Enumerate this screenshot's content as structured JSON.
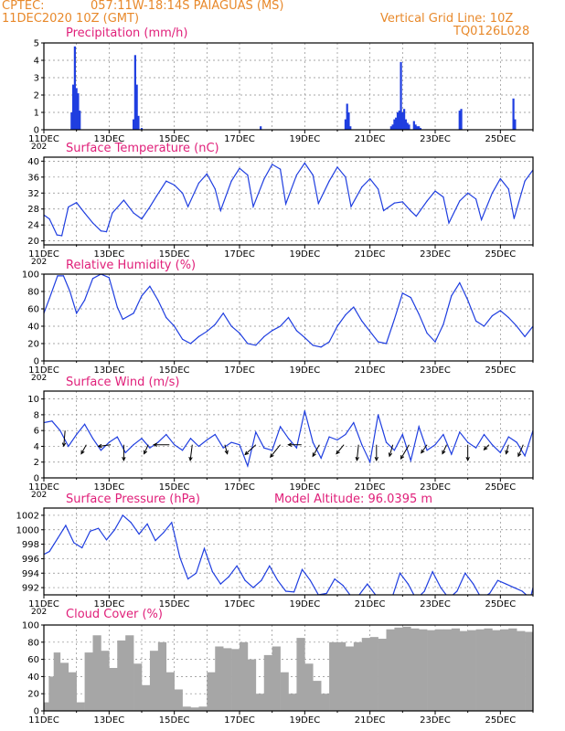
{
  "header": {
    "source": "CPTEC:",
    "location": "057:11W-18:14S  PAIAGUAS (MS)",
    "run": "11DEC2020 10Z (GMT)",
    "grid_line": "Vertical Grid Line: 10Z",
    "code": "TQ0126L028",
    "model_altitude": "Model Altitude: 96.0395 m"
  },
  "colors": {
    "header": "#e8892b",
    "title": "#e0207a",
    "line": "#1f3ee0",
    "bar": "#1f3ee0",
    "cloud": "#a6a6a6",
    "grid": "#8a8a8a",
    "arrow": "#000000"
  },
  "chart_data": [
    {
      "type": "bar",
      "title": "Precipitation (mm/h)",
      "ylim": [
        0,
        5
      ],
      "yticks": [
        "0",
        "1",
        "2",
        "3",
        "4",
        "5"
      ],
      "xticks": [
        "11DEC",
        "13DEC",
        "15DEC",
        "17DEC",
        "19DEC",
        "21DEC",
        "23DEC",
        "25DEC"
      ],
      "clipped_label": "202",
      "x": [
        0.85,
        0.9,
        0.95,
        1.0,
        1.05,
        1.1,
        2.75,
        2.8,
        2.85,
        2.9,
        3.0,
        6.65,
        9.25,
        9.3,
        9.35,
        9.4,
        10.65,
        10.7,
        10.75,
        10.8,
        10.85,
        10.9,
        10.95,
        11.0,
        11.05,
        11.1,
        11.15,
        11.2,
        11.35,
        11.4,
        11.45,
        11.5,
        11.55,
        12.75,
        12.8,
        14.4,
        14.45
      ],
      "values": [
        1.0,
        2.6,
        4.8,
        2.4,
        2.1,
        1.1,
        0.6,
        4.3,
        2.6,
        0.8,
        0.1,
        0.2,
        0.6,
        1.5,
        1.0,
        0.2,
        0.2,
        0.3,
        0.6,
        0.7,
        1.0,
        1.1,
        3.9,
        1.0,
        1.2,
        0.6,
        0.4,
        0.3,
        0.5,
        0.3,
        0.2,
        0.2,
        0.1,
        1.1,
        1.2,
        1.8,
        0.6
      ]
    },
    {
      "type": "line",
      "title": "Surface Temperature (nC)",
      "ylim": [
        19,
        41
      ],
      "yticks": [
        "20",
        "24",
        "28",
        "32",
        "36",
        "40"
      ],
      "xticks": [
        "11DEC",
        "13DEC",
        "15DEC",
        "17DEC",
        "19DEC",
        "21DEC",
        "23DEC",
        "25DEC"
      ],
      "clipped_label": "202",
      "x": [
        0,
        0.17,
        0.4,
        0.55,
        0.75,
        1.0,
        1.25,
        1.5,
        1.75,
        1.92,
        2.1,
        2.45,
        2.75,
        3.0,
        3.25,
        3.45,
        3.75,
        4.0,
        4.25,
        4.42,
        4.75,
        5.0,
        5.25,
        5.42,
        5.75,
        6.0,
        6.25,
        6.42,
        6.75,
        7.0,
        7.25,
        7.42,
        7.75,
        8.0,
        8.25,
        8.42,
        8.75,
        9.0,
        9.25,
        9.42,
        9.75,
        10.0,
        10.25,
        10.42,
        10.75,
        11.0,
        11.25,
        11.42,
        11.75,
        12.0,
        12.25,
        12.42,
        12.75,
        13.0,
        13.25,
        13.42,
        13.75,
        14.0,
        14.25,
        14.42,
        14.75,
        15.0
      ],
      "values": [
        26.5,
        25.5,
        21.5,
        21.3,
        28.5,
        29.6,
        27,
        24.5,
        22.5,
        22.3,
        27,
        30.2,
        27,
        25.5,
        28.5,
        31.2,
        35,
        34,
        32,
        28.6,
        34.5,
        36.8,
        33,
        27.6,
        35,
        38.2,
        36.5,
        28.6,
        35.5,
        39.2,
        38,
        29.3,
        36.5,
        39.5,
        36.5,
        29.4,
        35,
        38.5,
        36,
        28.6,
        33.5,
        35.6,
        33,
        27.6,
        29.5,
        29.8,
        27.5,
        26.2,
        30,
        32.5,
        31,
        24.5,
        30,
        32,
        30.5,
        25.3,
        32,
        35.6,
        33,
        25.6,
        35,
        37.8
      ]
    },
    {
      "type": "line",
      "title": "Relative Humidity (%)",
      "ylim": [
        0,
        100
      ],
      "yticks": [
        "0",
        "20",
        "40",
        "60",
        "80",
        "100"
      ],
      "xticks": [
        "11DEC",
        "13DEC",
        "15DEC",
        "17DEC",
        "19DEC",
        "21DEC",
        "23DEC",
        "25DEC"
      ],
      "clipped_label": "202",
      "x": [
        0,
        0.17,
        0.42,
        0.6,
        0.8,
        1.0,
        1.25,
        1.5,
        1.75,
        2.0,
        2.25,
        2.42,
        2.75,
        3.0,
        3.25,
        3.5,
        3.75,
        4.0,
        4.25,
        4.5,
        4.75,
        5.0,
        5.25,
        5.5,
        5.75,
        6.0,
        6.25,
        6.5,
        6.75,
        7.0,
        7.25,
        7.5,
        7.75,
        8.0,
        8.25,
        8.5,
        8.75,
        9.0,
        9.25,
        9.5,
        9.75,
        10.0,
        10.25,
        10.5,
        10.75,
        11.0,
        11.25,
        11.5,
        11.75,
        12.0,
        12.25,
        12.5,
        12.75,
        13.0,
        13.25,
        13.5,
        13.75,
        14.0,
        14.25,
        14.5,
        14.75,
        15.0
      ],
      "values": [
        55,
        72,
        98,
        98,
        80,
        55,
        70,
        95,
        100,
        96,
        62,
        48,
        55,
        75,
        86,
        70,
        50,
        40,
        25,
        20,
        28,
        34,
        42,
        55,
        40,
        32,
        20,
        18,
        28,
        35,
        40,
        50,
        35,
        27,
        18,
        16,
        22,
        40,
        53,
        62,
        46,
        34,
        22,
        20,
        48,
        78,
        73,
        54,
        32,
        22,
        42,
        75,
        90,
        70,
        46,
        40,
        52,
        58,
        50,
        40,
        28,
        40
      ]
    },
    {
      "type": "line",
      "title": "Surface Wind (m/s)",
      "ylim": [
        0,
        11
      ],
      "yticks": [
        "0",
        "2",
        "4",
        "6",
        "8",
        "10"
      ],
      "xticks": [
        "11DEC",
        "13DEC",
        "15DEC",
        "17DEC",
        "19DEC",
        "21DEC",
        "23DEC",
        "25DEC"
      ],
      "clipped_label": "202",
      "x": [
        0,
        0.25,
        0.5,
        0.75,
        1.0,
        1.25,
        1.5,
        1.75,
        2.0,
        2.25,
        2.5,
        2.75,
        3.0,
        3.25,
        3.5,
        3.75,
        4.0,
        4.25,
        4.5,
        4.75,
        5.0,
        5.25,
        5.5,
        5.75,
        6.0,
        6.25,
        6.5,
        6.75,
        7.0,
        7.25,
        7.5,
        7.75,
        8.0,
        8.25,
        8.5,
        8.75,
        9.0,
        9.25,
        9.5,
        9.75,
        10.0,
        10.25,
        10.5,
        10.75,
        11.0,
        11.25,
        11.5,
        11.75,
        12.0,
        12.25,
        12.5,
        12.75,
        13.0,
        13.25,
        13.5,
        13.75,
        14.0,
        14.25,
        14.5,
        14.75,
        15.0
      ],
      "values": [
        7.0,
        7.2,
        6.0,
        4.0,
        5.5,
        6.8,
        5.0,
        3.5,
        4.5,
        5.2,
        3.2,
        4.2,
        5.0,
        3.8,
        4.5,
        5.5,
        4.2,
        3.5,
        5.0,
        4.0,
        4.8,
        5.5,
        3.8,
        4.5,
        4.2,
        1.5,
        5.8,
        3.8,
        3.5,
        6.5,
        5.0,
        3.8,
        8.5,
        4.5,
        2.5,
        5.2,
        4.8,
        5.5,
        7.0,
        4.2,
        2.0,
        8.0,
        4.5,
        3.5,
        5.5,
        2.2,
        6.5,
        3.5,
        4.2,
        5.5,
        3.0,
        5.8,
        4.5,
        3.8,
        5.5,
        4.2,
        3.2,
        5.2,
        4.5,
        2.8,
        6.0
      ],
      "arrows": [
        [
          0.65,
          6.0,
          -0.08,
          -0.95
        ],
        [
          1.3,
          4.2,
          -0.3,
          -0.55
        ],
        [
          2.05,
          4.2,
          -0.75,
          -0.1
        ],
        [
          2.45,
          4.2,
          0,
          -0.95
        ],
        [
          3.2,
          4.2,
          -0.25,
          -0.55
        ],
        [
          3.85,
          4.2,
          -0.95,
          0
        ],
        [
          4.55,
          4.2,
          -0.12,
          -0.95
        ],
        [
          5.55,
          4.2,
          0.15,
          -0.55
        ],
        [
          6.5,
          4.2,
          -0.65,
          -0.6
        ],
        [
          7.25,
          4.2,
          -0.6,
          -0.75
        ],
        [
          7.9,
          4.2,
          -0.8,
          0
        ],
        [
          8.45,
          4.2,
          -0.4,
          -0.7
        ],
        [
          9.2,
          4.2,
          -0.45,
          -0.55
        ],
        [
          9.65,
          4.2,
          -0.1,
          -0.95
        ],
        [
          10.2,
          4.2,
          0,
          -0.95
        ],
        [
          10.7,
          4.2,
          -0.2,
          -0.7
        ],
        [
          11.2,
          4.2,
          -0.5,
          -0.85
        ],
        [
          11.75,
          4.2,
          -0.35,
          -0.5
        ],
        [
          12.35,
          4.2,
          -0.25,
          -0.55
        ],
        [
          13.0,
          4.2,
          0,
          -0.95
        ],
        [
          13.65,
          4.2,
          -0.3,
          -0.3
        ],
        [
          14.25,
          4.2,
          -0.15,
          -0.55
        ],
        [
          14.7,
          4.2,
          -0.3,
          -0.7
        ]
      ]
    },
    {
      "type": "line",
      "title": "Surface Pressure (hPa)",
      "ylim": [
        991,
        1003
      ],
      "yticks": [
        "992",
        "994",
        "996",
        "998",
        "1000",
        "1002"
      ],
      "xticks": [
        "11DEC",
        "13DEC",
        "15DEC",
        "17DEC",
        "19DEC",
        "21DEC",
        "23DEC",
        "25DEC"
      ],
      "clipped_label": "202",
      "x": [
        0,
        0.17,
        0.42,
        0.67,
        0.92,
        1.17,
        1.42,
        1.67,
        1.92,
        2.17,
        2.42,
        2.67,
        2.92,
        3.17,
        3.42,
        3.67,
        3.92,
        4.17,
        4.42,
        4.67,
        4.92,
        5.17,
        5.42,
        5.67,
        5.92,
        6.17,
        6.42,
        6.67,
        6.92,
        7.17,
        7.42,
        7.67,
        7.92,
        8.17,
        8.42,
        8.67,
        8.92,
        9.17,
        9.42,
        9.67,
        9.92,
        10.17,
        10.42,
        10.67,
        10.92,
        11.17,
        11.42,
        11.67,
        11.92,
        12.17,
        12.42,
        12.67,
        12.92,
        13.17,
        13.42,
        13.67,
        13.92,
        14.17,
        14.42,
        14.67,
        14.92,
        15.0
      ],
      "values": [
        996.6,
        997,
        998.8,
        1000.6,
        998.2,
        997.5,
        999.8,
        1000.2,
        998.6,
        1000,
        1002,
        1001,
        999.4,
        1000.8,
        998.5,
        999.6,
        1001,
        996.2,
        993.2,
        994,
        997.4,
        994.2,
        992.5,
        993.5,
        995,
        993,
        992,
        993,
        995,
        993,
        991.5,
        991.4,
        994.5,
        993,
        991,
        991.2,
        993.2,
        992.3,
        990.8,
        991,
        992.5,
        991,
        990.8,
        990.5,
        994,
        992.5,
        990.4,
        991.5,
        994.2,
        992,
        990.5,
        991.5,
        994,
        992.5,
        990.5,
        991.2,
        993,
        992.5,
        992,
        991.5,
        990.5,
        992
      ]
    },
    {
      "type": "area",
      "title": "Cloud Cover (%)",
      "ylim": [
        0,
        100
      ],
      "yticks": [
        "0",
        "20",
        "40",
        "60",
        "80",
        "100"
      ],
      "xticks": [
        "11DEC",
        "13DEC",
        "15DEC",
        "17DEC",
        "19DEC",
        "21DEC",
        "23DEC",
        "25DEC"
      ],
      "x": [
        0,
        0.15,
        0.3,
        0.5,
        0.75,
        1.0,
        1.25,
        1.5,
        1.75,
        2.0,
        2.25,
        2.5,
        2.75,
        3.0,
        3.25,
        3.5,
        3.75,
        4.0,
        4.25,
        4.5,
        4.75,
        5.0,
        5.25,
        5.5,
        5.75,
        6.0,
        6.25,
        6.5,
        6.75,
        7.0,
        7.25,
        7.5,
        7.75,
        8.0,
        8.25,
        8.5,
        8.75,
        9.0,
        9.25,
        9.5,
        9.75,
        10.0,
        10.25,
        10.5,
        10.75,
        11.0,
        11.25,
        11.5,
        11.75,
        12.0,
        12.25,
        12.5,
        12.75,
        13.0,
        13.25,
        13.5,
        13.75,
        14.0,
        14.25,
        14.5,
        14.75,
        15.0
      ],
      "values": [
        10,
        40,
        68,
        56,
        45,
        10,
        68,
        88,
        70,
        50,
        82,
        88,
        55,
        30,
        70,
        80,
        45,
        25,
        5,
        4,
        5,
        45,
        75,
        73,
        72,
        80,
        60,
        20,
        65,
        75,
        45,
        20,
        85,
        55,
        35,
        20,
        80,
        80,
        75,
        80,
        85,
        86,
        84,
        95,
        97,
        98,
        96,
        95,
        94,
        95,
        95,
        96,
        93,
        94,
        95,
        96,
        94,
        95,
        96,
        93,
        92,
        93
      ]
    }
  ]
}
